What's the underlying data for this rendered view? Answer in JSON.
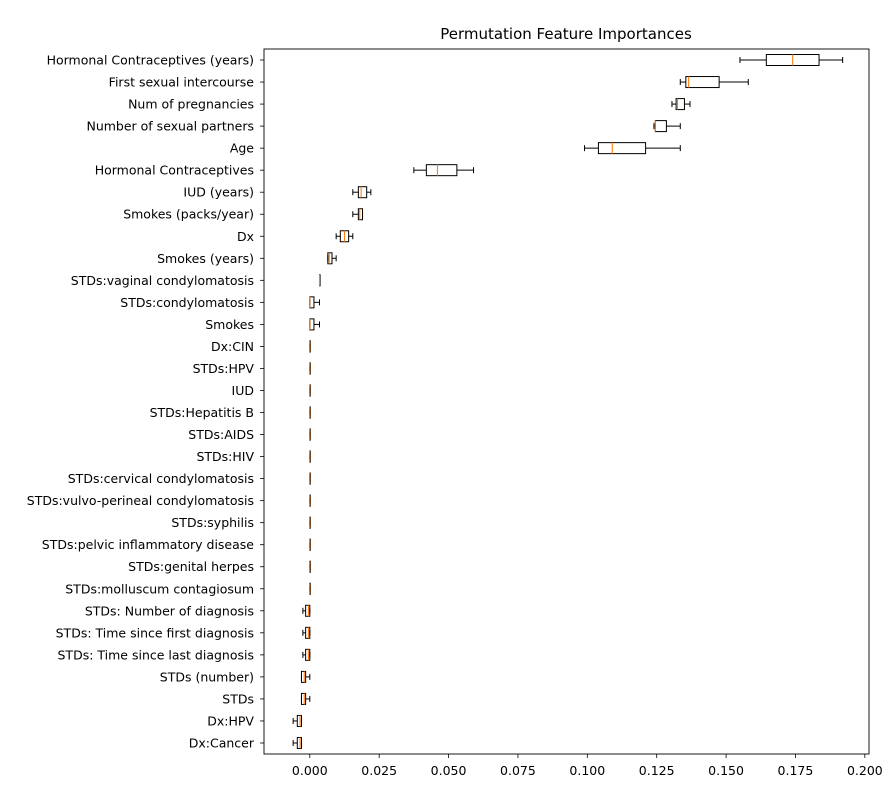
{
  "chart_data": {
    "type": "boxplot",
    "orientation": "horizontal",
    "title": "Permutation Feature Importances",
    "xlabel": "",
    "ylabel": "",
    "xlim": [
      -0.0165,
      0.2015
    ],
    "xticks": [
      0.0,
      0.025,
      0.05,
      0.075,
      0.1,
      0.125,
      0.15,
      0.175,
      0.2
    ],
    "xtick_labels": [
      "0.000",
      "0.025",
      "0.050",
      "0.075",
      "0.100",
      "0.125",
      "0.150",
      "0.175",
      "0.200"
    ],
    "grid": false,
    "colors": {
      "box": "#000000",
      "median": "#ff7f0e",
      "axes": "#000000"
    },
    "categories": [
      "Hormonal Contraceptives (years)",
      "First sexual intercourse",
      "Num of pregnancies",
      "Number of sexual partners",
      "Age",
      "Hormonal Contraceptives",
      "IUD (years)",
      "Smokes (packs/year)",
      "Dx",
      "Smokes (years)",
      "STDs:vaginal condylomatosis",
      "STDs:condylomatosis",
      "Smokes",
      "Dx:CIN",
      "STDs:HPV",
      "IUD",
      "STDs:Hepatitis B",
      "STDs:AIDS",
      "STDs:HIV",
      "STDs:cervical condylomatosis",
      "STDs:vulvo-perineal condylomatosis",
      "STDs:syphilis",
      "STDs:pelvic inflammatory disease",
      "STDs:genital herpes",
      "STDs:molluscum contagiosum",
      "STDs: Number of diagnosis",
      "STDs: Time since first diagnosis",
      "STDs: Time since last diagnosis",
      "STDs (number)",
      "STDs",
      "Dx:HPV",
      "Dx:Cancer"
    ],
    "boxes": [
      {
        "whislo": 0.155,
        "q1": 0.1645,
        "med": 0.174,
        "q3": 0.1835,
        "whishi": 0.192
      },
      {
        "whislo": 0.1335,
        "q1": 0.1355,
        "med": 0.1365,
        "q3": 0.1475,
        "whishi": 0.158
      },
      {
        "whislo": 0.1305,
        "q1": 0.132,
        "med": 0.1325,
        "q3": 0.135,
        "whishi": 0.137
      },
      {
        "whislo": 0.124,
        "q1": 0.1245,
        "med": 0.1245,
        "q3": 0.1285,
        "whishi": 0.1335
      },
      {
        "whislo": 0.099,
        "q1": 0.104,
        "med": 0.109,
        "q3": 0.121,
        "whishi": 0.1335
      },
      {
        "whislo": 0.0375,
        "q1": 0.042,
        "med": 0.046,
        "q3": 0.053,
        "whishi": 0.059
      },
      {
        "whislo": 0.0155,
        "q1": 0.0175,
        "med": 0.0185,
        "q3": 0.0205,
        "whishi": 0.022
      },
      {
        "whislo": 0.0155,
        "q1": 0.0175,
        "med": 0.018,
        "q3": 0.019,
        "whishi": 0.019
      },
      {
        "whislo": 0.0095,
        "q1": 0.011,
        "med": 0.0125,
        "q3": 0.014,
        "whishi": 0.0155
      },
      {
        "whislo": 0.0065,
        "q1": 0.0065,
        "med": 0.007,
        "q3": 0.008,
        "whishi": 0.0095
      },
      {
        "whislo": 0.0035,
        "q1": 0.0035,
        "med": 0.0035,
        "q3": 0.0035,
        "whishi": 0.0035
      },
      {
        "whislo": 0.0,
        "q1": 0.0,
        "med": 0.0,
        "q3": 0.0015,
        "whishi": 0.0035
      },
      {
        "whislo": 0.0,
        "q1": 0.0,
        "med": 0.0,
        "q3": 0.0015,
        "whishi": 0.0035
      },
      {
        "whislo": 0.0,
        "q1": 0.0,
        "med": 0.0,
        "q3": 0.0,
        "whishi": 0.0
      },
      {
        "whislo": 0.0,
        "q1": 0.0,
        "med": 0.0,
        "q3": 0.0,
        "whishi": 0.0
      },
      {
        "whislo": 0.0,
        "q1": 0.0,
        "med": 0.0,
        "q3": 0.0,
        "whishi": 0.0
      },
      {
        "whislo": 0.0,
        "q1": 0.0,
        "med": 0.0,
        "q3": 0.0,
        "whishi": 0.0
      },
      {
        "whislo": 0.0,
        "q1": 0.0,
        "med": 0.0,
        "q3": 0.0,
        "whishi": 0.0
      },
      {
        "whislo": 0.0,
        "q1": 0.0,
        "med": 0.0,
        "q3": 0.0,
        "whishi": 0.0
      },
      {
        "whislo": 0.0,
        "q1": 0.0,
        "med": 0.0,
        "q3": 0.0,
        "whishi": 0.0
      },
      {
        "whislo": 0.0,
        "q1": 0.0,
        "med": 0.0,
        "q3": 0.0,
        "whishi": 0.0
      },
      {
        "whislo": 0.0,
        "q1": 0.0,
        "med": 0.0,
        "q3": 0.0,
        "whishi": 0.0
      },
      {
        "whislo": 0.0,
        "q1": 0.0,
        "med": 0.0,
        "q3": 0.0,
        "whishi": 0.0
      },
      {
        "whislo": 0.0,
        "q1": 0.0,
        "med": 0.0,
        "q3": 0.0,
        "whishi": 0.0
      },
      {
        "whislo": 0.0,
        "q1": 0.0,
        "med": 0.0,
        "q3": 0.0,
        "whishi": 0.0
      },
      {
        "whislo": -0.0025,
        "q1": -0.0015,
        "med": -0.0005,
        "q3": 0.0,
        "whishi": 0.0
      },
      {
        "whislo": -0.0025,
        "q1": -0.0015,
        "med": -0.0005,
        "q3": 0.0,
        "whishi": 0.0
      },
      {
        "whislo": -0.0025,
        "q1": -0.0015,
        "med": -0.0005,
        "q3": 0.0,
        "whishi": 0.0
      },
      {
        "whislo": -0.003,
        "q1": -0.003,
        "med": -0.002,
        "q3": -0.0015,
        "whishi": 0.0
      },
      {
        "whislo": -0.003,
        "q1": -0.003,
        "med": -0.002,
        "q3": -0.0015,
        "whishi": 0.0
      },
      {
        "whislo": -0.006,
        "q1": -0.0045,
        "med": -0.0035,
        "q3": -0.003,
        "whishi": -0.003
      },
      {
        "whislo": -0.006,
        "q1": -0.0045,
        "med": -0.0035,
        "q3": -0.003,
        "whishi": -0.003
      }
    ]
  }
}
